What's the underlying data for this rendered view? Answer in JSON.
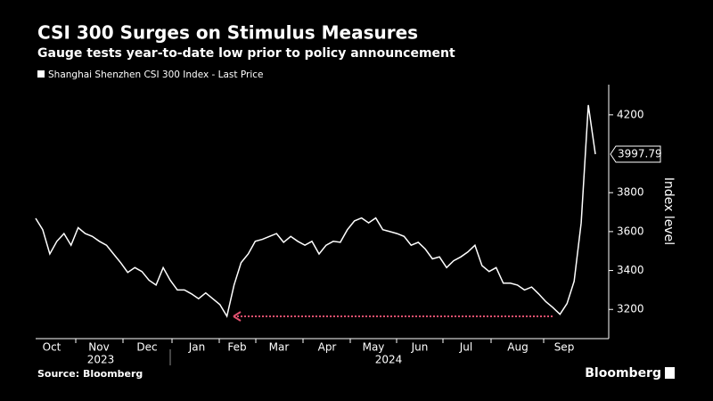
{
  "chart_data": {
    "type": "line",
    "title": "CSI 300 Surges on Stimulus Measures",
    "subtitle": "Gauge tests year-to-date low prior to policy announcement",
    "y_axis_label": "Index level",
    "series": [
      {
        "name": "Shanghai Shenzhen CSI 300 Index - Last Price",
        "color": "#ffffff",
        "values": [
          3668,
          3610,
          3485,
          3550,
          3590,
          3530,
          3620,
          3590,
          3575,
          3550,
          3530,
          3485,
          3440,
          3390,
          3415,
          3395,
          3350,
          3325,
          3415,
          3350,
          3300,
          3300,
          3280,
          3255,
          3285,
          3255,
          3225,
          3165,
          3325,
          3440,
          3485,
          3550,
          3560,
          3575,
          3590,
          3545,
          3575,
          3550,
          3530,
          3550,
          3485,
          3530,
          3550,
          3545,
          3610,
          3655,
          3670,
          3645,
          3670,
          3610,
          3600,
          3590,
          3575,
          3530,
          3545,
          3510,
          3460,
          3470,
          3415,
          3450,
          3470,
          3495,
          3530,
          3425,
          3395,
          3415,
          3335,
          3335,
          3325,
          3300,
          3315,
          3280,
          3240,
          3210,
          3175,
          3230,
          3345,
          3645,
          4250,
          3997.79
        ]
      }
    ],
    "ylim": [
      3050,
      4355
    ],
    "yticks": [
      3200,
      3400,
      3600,
      3800,
      4200
    ],
    "x_axis_labels": [
      "Oct",
      "Nov",
      "Dec",
      "Jan",
      "Feb",
      "Mar",
      "Apr",
      "May",
      "Jun",
      "Jul",
      "Aug",
      "Sep"
    ],
    "year_labels": [
      "2023",
      "2024"
    ],
    "source": "Source: Bloomberg",
    "brand": "Bloomberg"
  }
}
